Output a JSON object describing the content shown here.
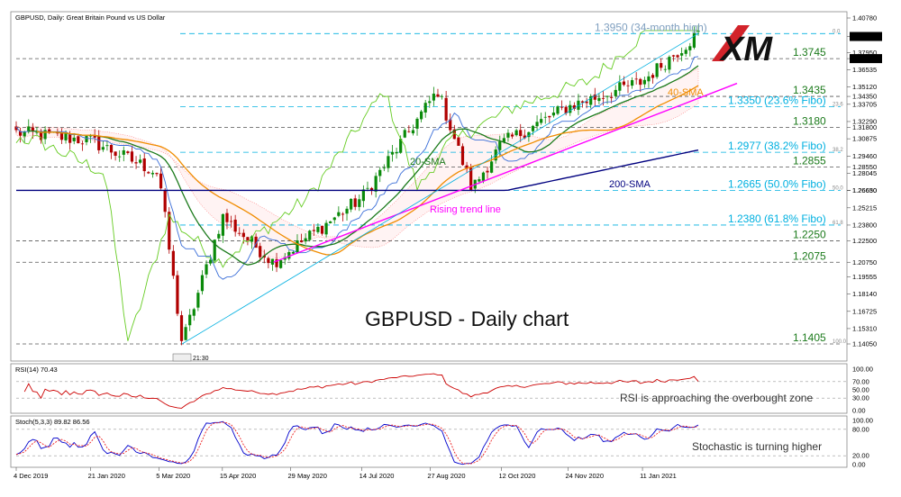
{
  "header": {
    "symbol_line": "GBPUSD, Daily:  Great Britain Pound vs US Dollar"
  },
  "logo": {
    "text": "XM"
  },
  "colors": {
    "bull": "#0a8a0a",
    "bear": "#b00000",
    "sma20": "#1b7a1b",
    "sma40": "#f08c00",
    "sma200": "#00007f",
    "trend": "#ff00ff",
    "ichimoku": "#66cc22",
    "kijun": "#3a6ed8",
    "cloud": "#ff8080",
    "fibo": "#00b0e0",
    "rsi": "#cc0000",
    "stoch_k": "#0000cc",
    "stoch_d": "#ee2222",
    "logo_red": "#d2232a"
  },
  "chart_data": [
    {
      "type": "candlestick",
      "title": "GBPUSD - Daily chart",
      "ylim": [
        1.1405,
        1.4078
      ],
      "y_ticks": [
        "1.40780",
        "1.39264",
        "1.37950",
        "1.37450",
        "1.36535",
        "1.35120",
        "1.34350",
        "1.33705",
        "1.32290",
        "1.31800",
        "1.30875",
        "1.29460",
        "1.28550",
        "1.28045",
        "1.26650",
        "1.26630",
        "1.25215",
        "1.23800",
        "1.22500",
        "1.20750",
        "1.19555",
        "1.18140",
        "1.16725",
        "1.15310",
        "1.14050"
      ],
      "x_ticks": [
        "4 Dec 2019",
        "21 Jan 2020",
        "5 Mar 2020",
        "15 Apr 2020",
        "29 May 2020",
        "14 Jul 2020",
        "27 Aug 2020",
        "12 Oct 2020",
        "24 Nov 2020",
        "11 Jan 2021"
      ],
      "price_tag": "1.39264",
      "highlighted_level": "1.37450",
      "level_labels": [
        {
          "text": "1.3950 (34-month high)",
          "value": 1.395,
          "color": "#7f9fbf"
        },
        {
          "text": "1.3745",
          "value": 1.3745,
          "color": "#1b7a1b"
        },
        {
          "text": "1.3435",
          "value": 1.3435,
          "color": "#1b7a1b"
        },
        {
          "text": "1.3350 (23.6% Fibo)",
          "value": 1.335,
          "color": "#00b0e0"
        },
        {
          "text": "1.3180",
          "value": 1.318,
          "color": "#1b7a1b"
        },
        {
          "text": "1.2977 (38.2% Fibo)",
          "value": 1.2977,
          "color": "#00b0e0"
        },
        {
          "text": "1.2855",
          "value": 1.2855,
          "color": "#1b7a1b"
        },
        {
          "text": "1.2665 (50.0% Fibo)",
          "value": 1.2665,
          "color": "#00b0e0"
        },
        {
          "text": "1.2380 (61.8% Fibo)",
          "value": 1.238,
          "color": "#00b0e0"
        },
        {
          "text": "1.2250",
          "value": 1.225,
          "color": "#1b7a1b"
        },
        {
          "text": "1.2075",
          "value": 1.2075,
          "color": "#1b7a1b"
        },
        {
          "text": "1.1405",
          "value": 1.1405,
          "color": "#1b7a1b"
        }
      ],
      "fibo_tags": [
        "0.0",
        "23.6",
        "38.2",
        "50.0",
        "61.8",
        "100.0"
      ],
      "annotations": {
        "sma20": "20-SMA",
        "sma40": "40-SMA",
        "sma200": "200-SMA",
        "trend": "Rising trend line",
        "time_tag": "21:30"
      },
      "key_points": [
        {
          "date": "4 Dec 2019",
          "close": 1.314
        },
        {
          "date": "21 Jan 2020",
          "close": 1.3072
        },
        {
          "date": "5 Mar 2020",
          "close": 1.2805
        },
        {
          "date": "20 Mar 2020",
          "close": 1.1405
        },
        {
          "date": "15 Apr 2020",
          "close": 1.245
        },
        {
          "date": "18 May 2020",
          "close": 1.2075
        },
        {
          "date": "14 Jul 2020",
          "close": 1.2605
        },
        {
          "date": "1 Sep 2020",
          "close": 1.3482
        },
        {
          "date": "23 Sep 2020",
          "close": 1.2676
        },
        {
          "date": "12 Oct 2020",
          "close": 1.3046
        },
        {
          "date": "24 Nov 2020",
          "close": 1.335
        },
        {
          "date": "11 Jan 2021",
          "close": 1.3558
        },
        {
          "date": "16 Feb 2021",
          "close": 1.395
        }
      ]
    },
    {
      "type": "line",
      "title": "RSI(14) 70.43",
      "ylim": [
        0,
        100
      ],
      "y_ticks": [
        "100.00",
        "70.00",
        "50.00",
        "30.00",
        "0.00"
      ],
      "series": [
        {
          "name": "RSI(14)",
          "last": 70.43
        }
      ],
      "note": "RSI is approaching the overbought zone"
    },
    {
      "type": "line",
      "title": "Stoch(5,3,3) 89.82 86.56",
      "ylim": [
        0,
        100
      ],
      "y_ticks": [
        "100.00",
        "80.00",
        "20.00",
        "0.00"
      ],
      "series": [
        {
          "name": "%K",
          "last": 89.82
        },
        {
          "name": "%D",
          "last": 86.56
        }
      ],
      "note": "Stochastic is turning higher"
    }
  ]
}
